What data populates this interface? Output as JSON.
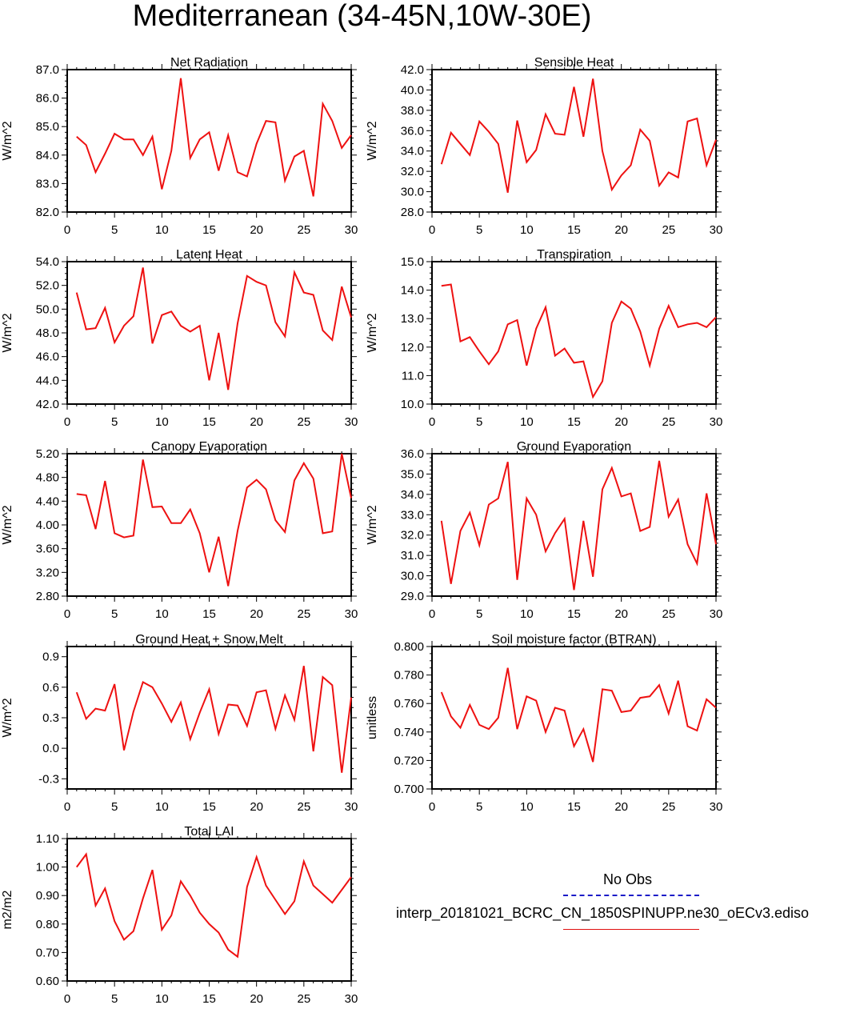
{
  "title": "Mediterranean (34-45N,10W-30E)",
  "colors": {
    "model": "#ee1111",
    "obs": "#1c1cc8",
    "axis": "#000000"
  },
  "legend": {
    "obs_label": "No Obs",
    "model_label": "interp_20181021_BCRC_CN_1850SPINUPP.ne30_oECv3.ediso"
  },
  "chart_data": [
    {
      "type": "line",
      "title": "Net Radiation",
      "ylabel": "W/m^2",
      "xlim": [
        0,
        30
      ],
      "ylim": [
        82.0,
        87.0
      ],
      "xticks": [
        0,
        5,
        10,
        15,
        20,
        25,
        30
      ],
      "yticks": [
        82.0,
        83.0,
        84.0,
        85.0,
        86.0,
        87.0
      ],
      "ytick_labels": [
        "82.0",
        "83.0",
        "84.0",
        "85.0",
        "86.0",
        "87.0"
      ],
      "yminor": 0.2,
      "series": [
        {
          "name": "interp_20181021_BCRC_CN_1850SPINUPP.ne30_oECv3.ediso",
          "x": [
            1,
            2,
            3,
            4,
            5,
            6,
            7,
            8,
            9,
            10,
            11,
            12,
            13,
            14,
            15,
            16,
            17,
            18,
            19,
            20,
            21,
            22,
            23,
            24,
            25,
            26,
            27,
            28,
            29,
            30
          ],
          "values": [
            84.65,
            84.35,
            83.4,
            84.05,
            84.75,
            84.55,
            84.55,
            84.0,
            84.65,
            82.8,
            84.15,
            86.7,
            83.9,
            84.55,
            84.8,
            83.45,
            84.7,
            83.4,
            83.25,
            84.4,
            85.2,
            85.15,
            83.1,
            83.95,
            84.15,
            82.55,
            85.8,
            85.2,
            84.25,
            84.7
          ]
        }
      ]
    },
    {
      "type": "line",
      "title": "Sensible Heat",
      "ylabel": "W/m^2",
      "xlim": [
        0,
        30
      ],
      "ylim": [
        28.0,
        42.0
      ],
      "xticks": [
        0,
        5,
        10,
        15,
        20,
        25,
        30
      ],
      "yticks": [
        28.0,
        30.0,
        32.0,
        34.0,
        36.0,
        38.0,
        40.0,
        42.0
      ],
      "ytick_labels": [
        "28.0",
        "30.0",
        "32.0",
        "34.0",
        "36.0",
        "38.0",
        "40.0",
        "42.0"
      ],
      "yminor": 0.5,
      "series": [
        {
          "name": "interp_20181021_BCRC_CN_1850SPINUPP.ne30_oECv3.ediso",
          "x": [
            1,
            2,
            3,
            4,
            5,
            6,
            7,
            8,
            9,
            10,
            11,
            12,
            13,
            14,
            15,
            16,
            17,
            18,
            19,
            20,
            21,
            22,
            23,
            24,
            25,
            26,
            27,
            28,
            29,
            30
          ],
          "values": [
            32.7,
            35.8,
            34.7,
            33.6,
            36.9,
            35.9,
            34.7,
            29.9,
            37.0,
            32.9,
            34.1,
            37.6,
            35.7,
            35.6,
            40.3,
            35.4,
            41.1,
            34.0,
            30.2,
            31.6,
            32.6,
            36.1,
            35.0,
            30.6,
            31.9,
            31.4,
            36.9,
            37.2,
            32.6,
            35.1
          ]
        }
      ]
    },
    {
      "type": "line",
      "title": "Latent Heat",
      "ylabel": "W/m^2",
      "xlim": [
        0,
        30
      ],
      "ylim": [
        42.0,
        54.0
      ],
      "xticks": [
        0,
        5,
        10,
        15,
        20,
        25,
        30
      ],
      "yticks": [
        42.0,
        44.0,
        46.0,
        48.0,
        50.0,
        52.0,
        54.0
      ],
      "ytick_labels": [
        "42.0",
        "44.0",
        "46.0",
        "48.0",
        "50.0",
        "52.0",
        "54.0"
      ],
      "yminor": 0.5,
      "series": [
        {
          "name": "interp_20181021_BCRC_CN_1850SPINUPP.ne30_oECv3.ediso",
          "x": [
            1,
            2,
            3,
            4,
            5,
            6,
            7,
            8,
            9,
            10,
            11,
            12,
            13,
            14,
            15,
            16,
            17,
            18,
            19,
            20,
            21,
            22,
            23,
            24,
            25,
            26,
            27,
            28,
            29,
            30
          ],
          "values": [
            51.4,
            48.3,
            48.4,
            50.1,
            47.2,
            48.6,
            49.4,
            53.5,
            47.1,
            49.5,
            49.8,
            48.6,
            48.1,
            48.6,
            44.0,
            48.0,
            43.2,
            48.8,
            52.8,
            52.3,
            52.0,
            48.9,
            47.7,
            53.1,
            51.4,
            51.2,
            48.2,
            47.4,
            51.9,
            49.3
          ]
        }
      ]
    },
    {
      "type": "line",
      "title": "Transpiration",
      "ylabel": "W/m^2",
      "xlim": [
        0,
        30
      ],
      "ylim": [
        10.0,
        15.0
      ],
      "xticks": [
        0,
        5,
        10,
        15,
        20,
        25,
        30
      ],
      "yticks": [
        10.0,
        11.0,
        12.0,
        13.0,
        14.0,
        15.0
      ],
      "ytick_labels": [
        "10.0",
        "11.0",
        "12.0",
        "13.0",
        "14.0",
        "15.0"
      ],
      "yminor": 0.2,
      "series": [
        {
          "name": "interp_20181021_BCRC_CN_1850SPINUPP.ne30_oECv3.ediso",
          "x": [
            1,
            2,
            3,
            4,
            5,
            6,
            7,
            8,
            9,
            10,
            11,
            12,
            13,
            14,
            15,
            16,
            17,
            18,
            19,
            20,
            21,
            22,
            23,
            24,
            25,
            26,
            27,
            28,
            29,
            30
          ],
          "values": [
            14.15,
            14.2,
            12.2,
            12.35,
            11.85,
            11.4,
            11.85,
            12.8,
            12.95,
            11.35,
            12.65,
            13.4,
            11.7,
            11.95,
            11.45,
            11.5,
            10.25,
            10.8,
            12.85,
            13.6,
            13.35,
            12.55,
            11.35,
            12.65,
            13.45,
            12.7,
            12.8,
            12.85,
            12.7,
            13.05
          ]
        }
      ]
    },
    {
      "type": "line",
      "title": "Canopy Evaporation",
      "ylabel": "W/m^2",
      "xlim": [
        0,
        30
      ],
      "ylim": [
        2.8,
        5.2
      ],
      "xticks": [
        0,
        5,
        10,
        15,
        20,
        25,
        30
      ],
      "yticks": [
        2.8,
        3.2,
        3.6,
        4.0,
        4.4,
        4.8,
        5.2
      ],
      "ytick_labels": [
        "2.80",
        "3.20",
        "3.60",
        "4.00",
        "4.40",
        "4.80",
        "5.20"
      ],
      "yminor": 0.1,
      "series": [
        {
          "name": "interp_20181021_BCRC_CN_1850SPINUPP.ne30_oECv3.ediso",
          "x": [
            1,
            2,
            3,
            4,
            5,
            6,
            7,
            8,
            9,
            10,
            11,
            12,
            13,
            14,
            15,
            16,
            17,
            18,
            19,
            20,
            21,
            22,
            23,
            24,
            25,
            26,
            27,
            28,
            29,
            30
          ],
          "values": [
            4.52,
            4.5,
            3.93,
            4.74,
            3.86,
            3.79,
            3.82,
            5.1,
            4.3,
            4.31,
            4.03,
            4.03,
            4.26,
            3.86,
            3.2,
            3.8,
            2.97,
            3.9,
            4.63,
            4.76,
            4.6,
            4.08,
            3.88,
            4.75,
            5.04,
            4.78,
            3.86,
            3.89,
            5.2,
            4.45
          ]
        }
      ]
    },
    {
      "type": "line",
      "title": "Ground Evaporation",
      "ylabel": "W/m^2",
      "xlim": [
        0,
        30
      ],
      "ylim": [
        29.0,
        36.0
      ],
      "xticks": [
        0,
        5,
        10,
        15,
        20,
        25,
        30
      ],
      "yticks": [
        29.0,
        30.0,
        31.0,
        32.0,
        33.0,
        34.0,
        35.0,
        36.0
      ],
      "ytick_labels": [
        "29.0",
        "30.0",
        "31.0",
        "32.0",
        "33.0",
        "34.0",
        "35.0",
        "36.0"
      ],
      "yminor": 0.2,
      "series": [
        {
          "name": "interp_20181021_BCRC_CN_1850SPINUPP.ne30_oECv3.ediso",
          "x": [
            1,
            2,
            3,
            4,
            5,
            6,
            7,
            8,
            9,
            10,
            11,
            12,
            13,
            14,
            15,
            16,
            17,
            18,
            19,
            20,
            21,
            22,
            23,
            24,
            25,
            26,
            27,
            28,
            29,
            30
          ],
          "values": [
            32.7,
            29.6,
            32.2,
            33.1,
            31.5,
            33.5,
            33.8,
            35.6,
            29.8,
            33.8,
            33.0,
            31.2,
            32.1,
            32.8,
            29.3,
            32.7,
            29.95,
            34.25,
            35.3,
            33.9,
            34.05,
            32.2,
            32.4,
            35.65,
            32.9,
            33.75,
            31.55,
            30.6,
            34.05,
            31.55
          ]
        }
      ]
    },
    {
      "type": "line",
      "title": "Ground Heat + Snow Melt",
      "ylabel": "W/m^2",
      "xlim": [
        0,
        30
      ],
      "ylim": [
        -0.4,
        1.0
      ],
      "xticks": [
        0,
        5,
        10,
        15,
        20,
        25,
        30
      ],
      "yticks": [
        -0.3,
        0.0,
        0.3,
        0.6,
        0.9
      ],
      "ytick_labels": [
        "-0.3",
        "0.0",
        "0.3",
        "0.6",
        "0.9"
      ],
      "yminor": 0.1,
      "series": [
        {
          "name": "interp_20181021_BCRC_CN_1850SPINUPP.ne30_oECv3.ediso",
          "x": [
            1,
            2,
            3,
            4,
            5,
            6,
            7,
            8,
            9,
            10,
            11,
            12,
            13,
            14,
            15,
            16,
            17,
            18,
            19,
            20,
            21,
            22,
            23,
            24,
            25,
            26,
            27,
            28,
            29,
            30
          ],
          "values": [
            0.55,
            0.29,
            0.39,
            0.37,
            0.63,
            -0.02,
            0.36,
            0.65,
            0.6,
            0.44,
            0.26,
            0.45,
            0.09,
            0.35,
            0.58,
            0.14,
            0.43,
            0.42,
            0.22,
            0.55,
            0.57,
            0.19,
            0.52,
            0.28,
            0.81,
            -0.03,
            0.7,
            0.62,
            -0.24,
            0.5
          ]
        }
      ]
    },
    {
      "type": "line",
      "title": "Soil moisture factor (BTRAN)",
      "ylabel": "unitless",
      "xlim": [
        0,
        30
      ],
      "ylim": [
        0.7,
        0.8
      ],
      "xticks": [
        0,
        5,
        10,
        15,
        20,
        25,
        30
      ],
      "yticks": [
        0.7,
        0.72,
        0.74,
        0.76,
        0.78,
        0.8
      ],
      "ytick_labels": [
        "0.700",
        "0.720",
        "0.740",
        "0.760",
        "0.780",
        "0.800"
      ],
      "yminor": 0.005,
      "series": [
        {
          "name": "interp_20181021_BCRC_CN_1850SPINUPP.ne30_oECv3.ediso",
          "x": [
            1,
            2,
            3,
            4,
            5,
            6,
            7,
            8,
            9,
            10,
            11,
            12,
            13,
            14,
            15,
            16,
            17,
            18,
            19,
            20,
            21,
            22,
            23,
            24,
            25,
            26,
            27,
            28,
            29,
            30
          ],
          "values": [
            0.768,
            0.751,
            0.743,
            0.759,
            0.745,
            0.742,
            0.75,
            0.785,
            0.742,
            0.765,
            0.762,
            0.74,
            0.757,
            0.755,
            0.73,
            0.742,
            0.719,
            0.77,
            0.769,
            0.754,
            0.755,
            0.764,
            0.765,
            0.773,
            0.753,
            0.776,
            0.744,
            0.741,
            0.763,
            0.757
          ]
        }
      ]
    },
    {
      "type": "line",
      "title": "Total LAI",
      "ylabel": "m2/m2",
      "xlim": [
        0,
        30
      ],
      "ylim": [
        0.6,
        1.1
      ],
      "xticks": [
        0,
        5,
        10,
        15,
        20,
        25,
        30
      ],
      "yticks": [
        0.6,
        0.7,
        0.8,
        0.9,
        1.0,
        1.1
      ],
      "ytick_labels": [
        "0.60",
        "0.70",
        "0.80",
        "0.90",
        "1.00",
        "1.10"
      ],
      "yminor": 0.02,
      "series": [
        {
          "name": "interp_20181021_BCRC_CN_1850SPINUPP.ne30_oECv3.ediso",
          "x": [
            1,
            2,
            3,
            4,
            5,
            6,
            7,
            8,
            9,
            10,
            11,
            12,
            13,
            14,
            15,
            16,
            17,
            18,
            19,
            20,
            21,
            22,
            23,
            24,
            25,
            26,
            27,
            28,
            29,
            30
          ],
          "values": [
            1.0,
            1.045,
            0.865,
            0.925,
            0.81,
            0.745,
            0.775,
            0.89,
            0.99,
            0.78,
            0.83,
            0.95,
            0.9,
            0.84,
            0.8,
            0.77,
            0.71,
            0.685,
            0.93,
            1.035,
            0.935,
            0.885,
            0.835,
            0.88,
            1.02,
            0.935,
            0.905,
            0.875,
            0.92,
            0.965
          ]
        }
      ]
    }
  ]
}
